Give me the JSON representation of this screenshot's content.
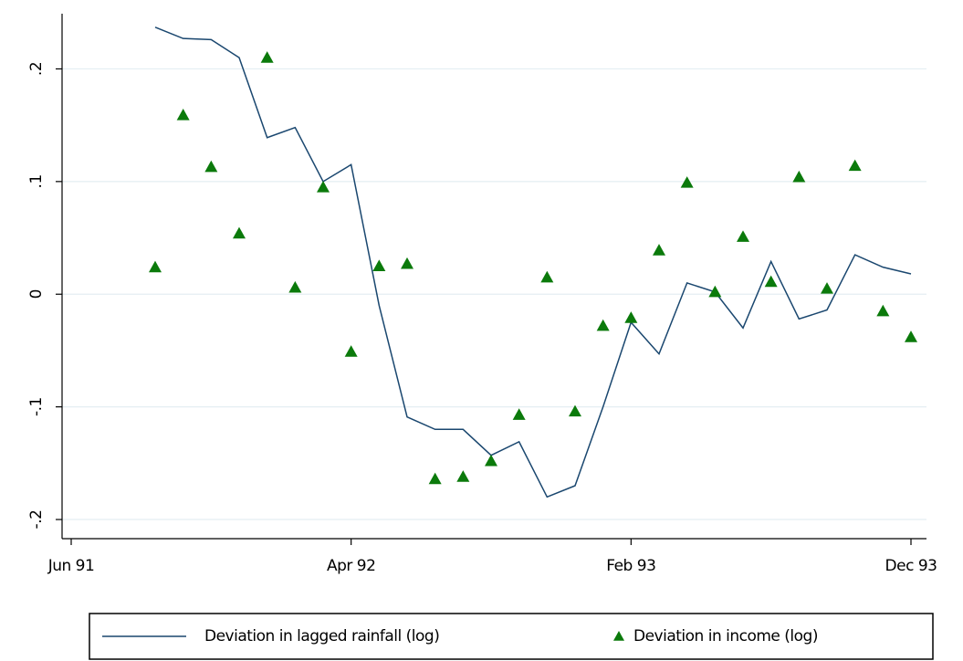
{
  "chart_data": {
    "type": "line",
    "x": [
      "1991-09",
      "1991-10",
      "1991-11",
      "1991-12",
      "1992-01",
      "1992-02",
      "1992-03",
      "1992-04",
      "1992-05",
      "1992-06",
      "1992-07",
      "1992-08",
      "1992-09",
      "1992-10",
      "1992-11",
      "1992-12",
      "1993-01",
      "1993-02",
      "1993-03",
      "1993-04",
      "1993-05",
      "1993-06",
      "1993-07",
      "1993-08",
      "1993-09",
      "1993-10",
      "1993-11",
      "1993-12"
    ],
    "series": [
      {
        "name": "Deviation in lagged rainfall (log)",
        "color": "#1a476f",
        "style": "line",
        "values": [
          0.237,
          0.227,
          0.226,
          0.21,
          0.139,
          0.148,
          0.1,
          0.115,
          -0.01,
          -0.109,
          -0.12,
          -0.12,
          -0.143,
          -0.131,
          -0.18,
          -0.17,
          -0.1,
          -0.025,
          -0.053,
          0.01,
          0.002,
          -0.03,
          0.029,
          -0.022,
          -0.014,
          0.035,
          0.024,
          0.018
        ]
      },
      {
        "name": "Deviation in income (log)",
        "color": "#0b7a0b",
        "style": "triangle",
        "values": [
          0.024,
          0.159,
          0.113,
          0.054,
          0.21,
          0.006,
          0.095,
          -0.051,
          0.025,
          0.027,
          -0.164,
          -0.162,
          -0.148,
          -0.107,
          0.015,
          -0.104,
          -0.028,
          -0.021,
          0.039,
          0.099,
          0.002,
          0.051,
          0.011,
          0.104,
          0.005,
          0.114,
          -0.015,
          -0.038
        ]
      }
    ],
    "xlim": [
      "1991-06",
      "1993-12"
    ],
    "xticks": [
      {
        "value": "1991-06",
        "label": "Jun 91"
      },
      {
        "value": "1992-04",
        "label": "Apr 92"
      },
      {
        "value": "1993-02",
        "label": "Feb 93"
      },
      {
        "value": "1993-12",
        "label": "Dec 93"
      }
    ],
    "ylim": [
      -0.217,
      0.249
    ],
    "yticks": [
      {
        "value": -0.2,
        "label": "-.2"
      },
      {
        "value": -0.1,
        "label": "-.1"
      },
      0,
      {
        "value": 0.1,
        "label": ".1"
      },
      {
        "value": 0.2,
        "label": ".2"
      }
    ],
    "grid": true
  }
}
